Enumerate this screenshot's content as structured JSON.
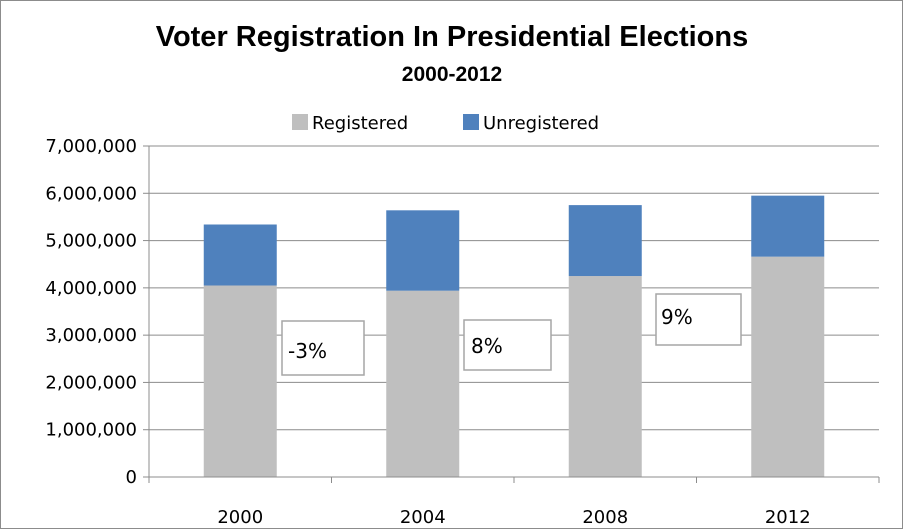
{
  "chart_data": {
    "type": "bar",
    "stacked": true,
    "title": "Voter Registration In Presidential Elections",
    "subtitle": "2000-2012",
    "categories": [
      "2000",
      "2004",
      "2008",
      "2012"
    ],
    "series": [
      {
        "name": "Registered",
        "color": "#bfbfbf",
        "values": [
          4050000,
          3940000,
          4250000,
          4660000
        ]
      },
      {
        "name": "Unregistered",
        "color": "#4f81bd",
        "values": [
          1290000,
          1700000,
          1500000,
          1290000
        ]
      }
    ],
    "ylim": [
      0,
      7000000
    ],
    "yticks": [
      0,
      1000000,
      2000000,
      3000000,
      4000000,
      5000000,
      6000000,
      7000000
    ],
    "ytick_labels": [
      "0",
      "1,000,000",
      "2,000,000",
      "3,000,000",
      "4,000,000",
      "5,000,000",
      "6,000,000",
      "7,000,000"
    ],
    "grid": true,
    "legend_position": "top",
    "annotations": [
      {
        "text": "-3%"
      },
      {
        "text": "8%"
      },
      {
        "text": "9%"
      }
    ]
  }
}
